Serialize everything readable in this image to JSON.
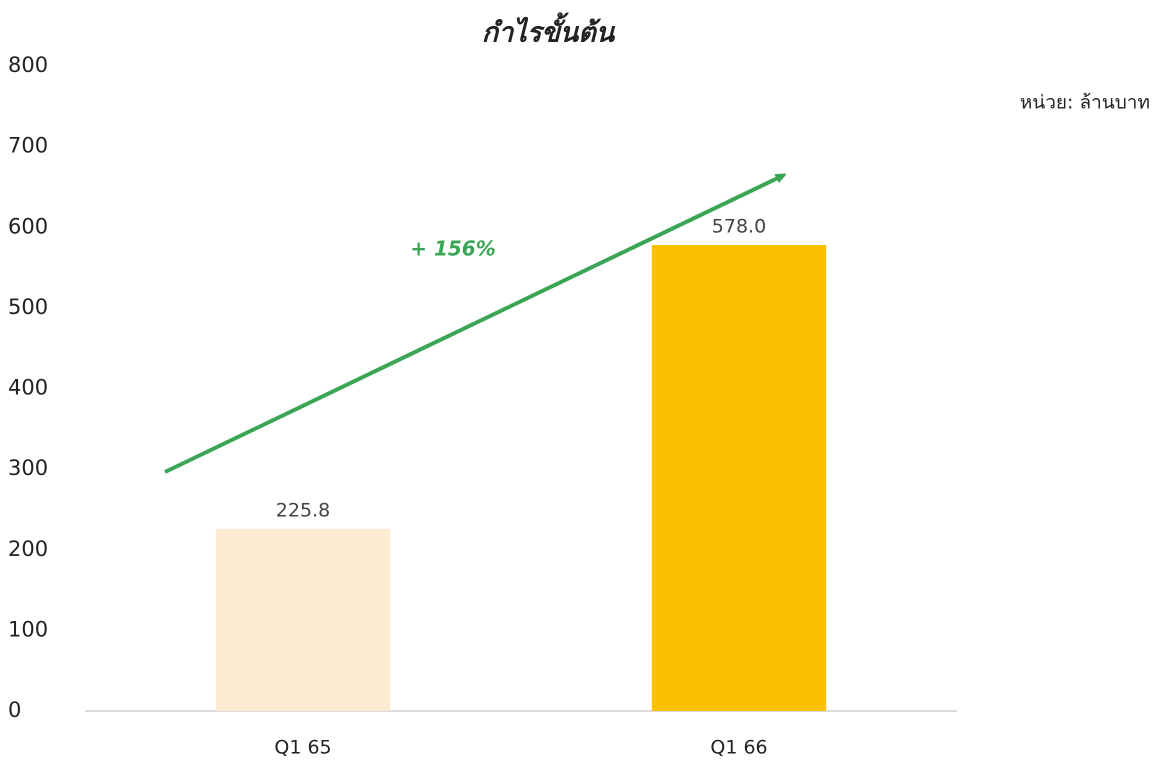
{
  "chart_data": {
    "type": "bar",
    "title": "กำไรขั้นต้น",
    "unit_label": "หน่วย: ล้านบาท",
    "annotation": "+ 156%",
    "categories": [
      "Q1 65",
      "Q1 66"
    ],
    "values": [
      225.8,
      578.0
    ],
    "value_labels": [
      "225.8",
      "578.0"
    ],
    "colors": [
      "#fdecd2",
      "#fbc000"
    ],
    "ylim": [
      0,
      800
    ],
    "yticks": [
      0,
      100,
      200,
      300,
      400,
      500,
      600,
      700,
      800
    ],
    "grid": false
  }
}
